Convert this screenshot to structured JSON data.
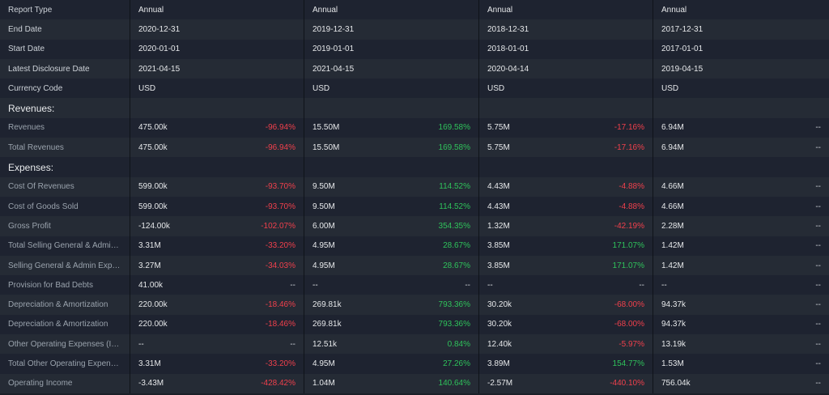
{
  "header_rows": [
    {
      "label": "Report Type",
      "values": [
        "Annual",
        "Annual",
        "Annual",
        "Annual"
      ]
    },
    {
      "label": "End Date",
      "values": [
        "2020-12-31",
        "2019-12-31",
        "2018-12-31",
        "2017-12-31"
      ]
    },
    {
      "label": "Start Date",
      "values": [
        "2020-01-01",
        "2019-01-01",
        "2018-01-01",
        "2017-01-01"
      ]
    },
    {
      "label": "Latest Disclosure Date",
      "values": [
        "2021-04-15",
        "2021-04-15",
        "2020-04-14",
        "2019-04-15"
      ]
    },
    {
      "label": "Currency Code",
      "values": [
        "USD",
        "USD",
        "USD",
        "USD"
      ]
    }
  ],
  "sections": [
    {
      "title": "Revenues:",
      "rows": [
        {
          "label": "Revenues",
          "cells": [
            {
              "value": "475.00k",
              "change": "-96.94%",
              "trend": "neg"
            },
            {
              "value": "15.50M",
              "change": "169.58%",
              "trend": "pos"
            },
            {
              "value": "5.75M",
              "change": "-17.16%",
              "trend": "neg"
            },
            {
              "value": "6.94M",
              "change": "--",
              "trend": "neu"
            }
          ]
        },
        {
          "label": "Total Revenues",
          "cells": [
            {
              "value": "475.00k",
              "change": "-96.94%",
              "trend": "neg"
            },
            {
              "value": "15.50M",
              "change": "169.58%",
              "trend": "pos"
            },
            {
              "value": "5.75M",
              "change": "-17.16%",
              "trend": "neg"
            },
            {
              "value": "6.94M",
              "change": "--",
              "trend": "neu"
            }
          ]
        }
      ]
    },
    {
      "title": "Expenses:",
      "rows": [
        {
          "label": "Cost Of Revenues",
          "cells": [
            {
              "value": "599.00k",
              "change": "-93.70%",
              "trend": "neg"
            },
            {
              "value": "9.50M",
              "change": "114.52%",
              "trend": "pos"
            },
            {
              "value": "4.43M",
              "change": "-4.88%",
              "trend": "neg"
            },
            {
              "value": "4.66M",
              "change": "--",
              "trend": "neu"
            }
          ]
        },
        {
          "label": "Cost of Goods Sold",
          "cells": [
            {
              "value": "599.00k",
              "change": "-93.70%",
              "trend": "neg"
            },
            {
              "value": "9.50M",
              "change": "114.52%",
              "trend": "pos"
            },
            {
              "value": "4.43M",
              "change": "-4.88%",
              "trend": "neg"
            },
            {
              "value": "4.66M",
              "change": "--",
              "trend": "neu"
            }
          ]
        },
        {
          "label": "Gross Profit",
          "cells": [
            {
              "value": "-124.00k",
              "change": "-102.07%",
              "trend": "neg"
            },
            {
              "value": "6.00M",
              "change": "354.35%",
              "trend": "pos"
            },
            {
              "value": "1.32M",
              "change": "-42.19%",
              "trend": "neg"
            },
            {
              "value": "2.28M",
              "change": "--",
              "trend": "neu"
            }
          ]
        },
        {
          "label": "Total Selling General & Admin Ex...",
          "cells": [
            {
              "value": "3.31M",
              "change": "-33.20%",
              "trend": "neg"
            },
            {
              "value": "4.95M",
              "change": "28.67%",
              "trend": "pos"
            },
            {
              "value": "3.85M",
              "change": "171.07%",
              "trend": "pos"
            },
            {
              "value": "1.42M",
              "change": "--",
              "trend": "neu"
            }
          ]
        },
        {
          "label": "Selling General & Admin Expenses",
          "cells": [
            {
              "value": "3.27M",
              "change": "-34.03%",
              "trend": "neg"
            },
            {
              "value": "4.95M",
              "change": "28.67%",
              "trend": "pos"
            },
            {
              "value": "3.85M",
              "change": "171.07%",
              "trend": "pos"
            },
            {
              "value": "1.42M",
              "change": "--",
              "trend": "neu"
            }
          ]
        },
        {
          "label": "Provision for Bad Debts",
          "cells": [
            {
              "value": "41.00k",
              "change": "--",
              "trend": "neu"
            },
            {
              "value": "--",
              "change": "--",
              "trend": "neu"
            },
            {
              "value": "--",
              "change": "--",
              "trend": "neu"
            },
            {
              "value": "--",
              "change": "--",
              "trend": "neu"
            }
          ]
        },
        {
          "label": "Depreciation & Amortization",
          "cells": [
            {
              "value": "220.00k",
              "change": "-18.46%",
              "trend": "neg"
            },
            {
              "value": "269.81k",
              "change": "793.36%",
              "trend": "pos"
            },
            {
              "value": "30.20k",
              "change": "-68.00%",
              "trend": "neg"
            },
            {
              "value": "94.37k",
              "change": "--",
              "trend": "neu"
            }
          ]
        },
        {
          "label": "Depreciation & Amortization",
          "cells": [
            {
              "value": "220.00k",
              "change": "-18.46%",
              "trend": "neg"
            },
            {
              "value": "269.81k",
              "change": "793.36%",
              "trend": "pos"
            },
            {
              "value": "30.20k",
              "change": "-68.00%",
              "trend": "neg"
            },
            {
              "value": "94.37k",
              "change": "--",
              "trend": "neu"
            }
          ]
        },
        {
          "label": "Other Operating Expenses (Inco...",
          "cells": [
            {
              "value": "--",
              "change": "--",
              "trend": "neu"
            },
            {
              "value": "12.51k",
              "change": "0.84%",
              "trend": "pos"
            },
            {
              "value": "12.40k",
              "change": "-5.97%",
              "trend": "neg"
            },
            {
              "value": "13.19k",
              "change": "--",
              "trend": "neu"
            }
          ]
        },
        {
          "label": "Total Other Operating Expenses",
          "cells": [
            {
              "value": "3.31M",
              "change": "-33.20%",
              "trend": "neg"
            },
            {
              "value": "4.95M",
              "change": "27.26%",
              "trend": "pos"
            },
            {
              "value": "3.89M",
              "change": "154.77%",
              "trend": "pos"
            },
            {
              "value": "1.53M",
              "change": "--",
              "trend": "neu"
            }
          ]
        },
        {
          "label": "Operating Income",
          "cells": [
            {
              "value": "-3.43M",
              "change": "-428.42%",
              "trend": "neg"
            },
            {
              "value": "1.04M",
              "change": "140.64%",
              "trend": "pos"
            },
            {
              "value": "-2.57M",
              "change": "-440.10%",
              "trend": "neg"
            },
            {
              "value": "756.04k",
              "change": "--",
              "trend": "neu"
            }
          ]
        }
      ]
    }
  ],
  "colors": {
    "positive": "#2fc25b",
    "negative": "#f0404c",
    "background": "#1b2028"
  }
}
